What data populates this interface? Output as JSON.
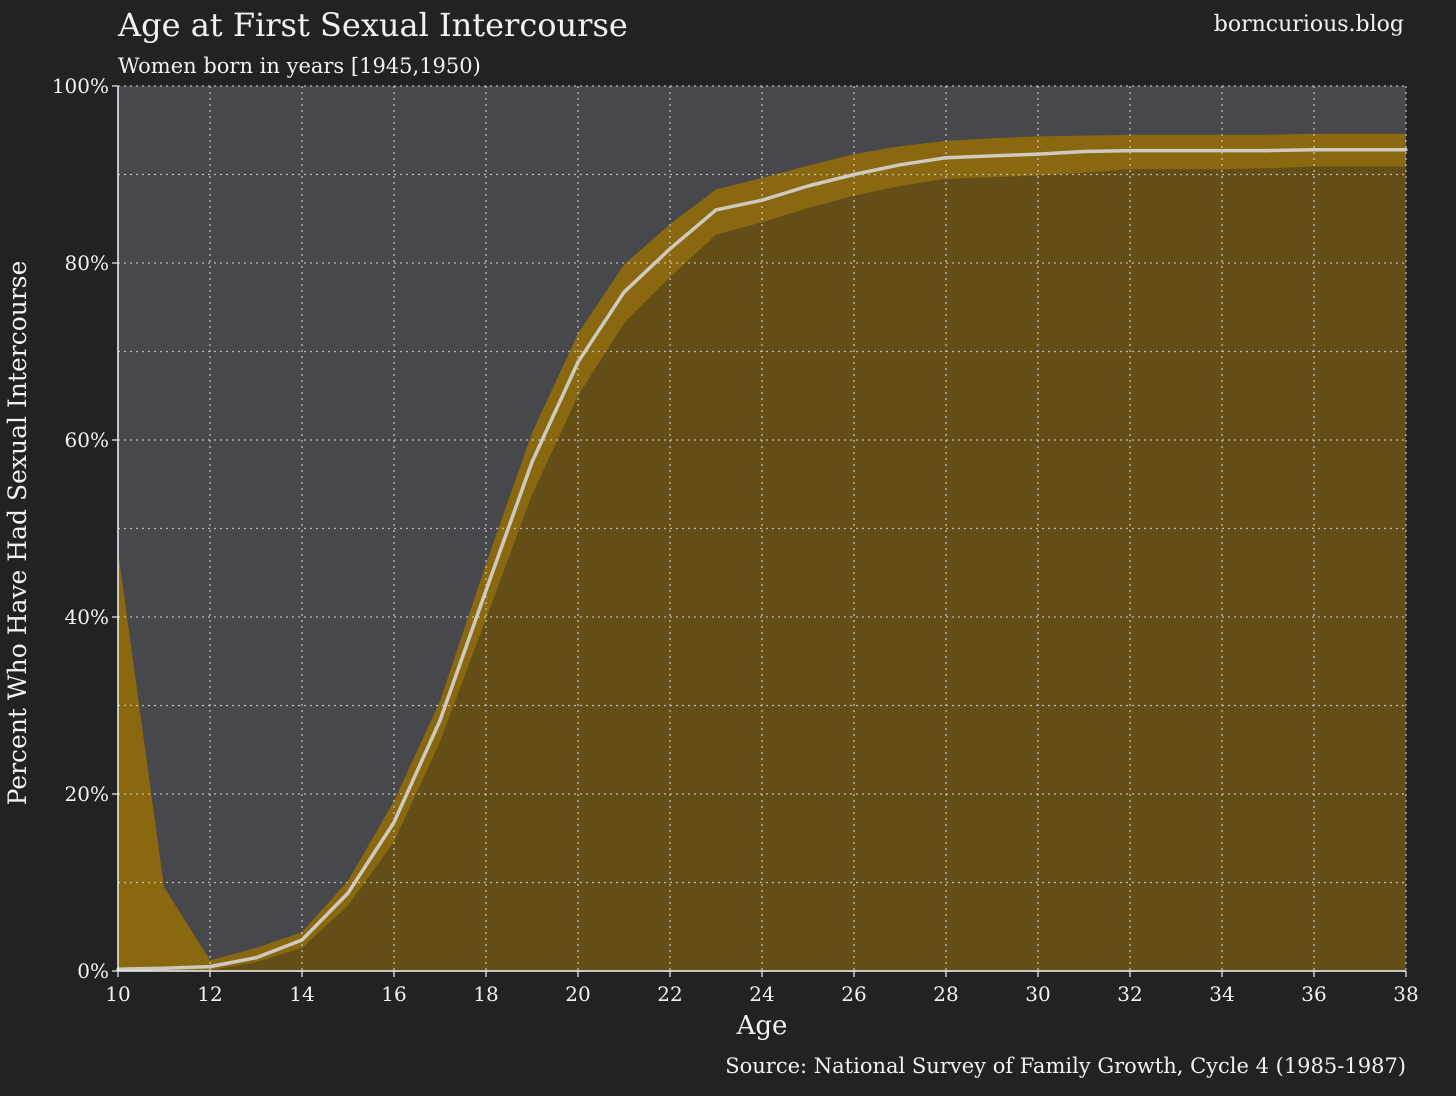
{
  "chart_data": {
    "type": "area",
    "title": "Age at First Sexual Intercourse",
    "subtitle": "Women born in years [1945,1950)",
    "watermark": "borncurious.blog",
    "source": "Source: National Survey of Family Growth, Cycle 4 (1985-1987)",
    "xlabel": "Age",
    "ylabel": "Percent Who Have Had Sexual Intercourse",
    "xlim": [
      10,
      38
    ],
    "ylim": [
      0,
      100
    ],
    "x_ticks": [
      10,
      12,
      14,
      16,
      18,
      20,
      22,
      24,
      26,
      28,
      30,
      32,
      34,
      36,
      38
    ],
    "y_ticks": [
      0,
      20,
      40,
      60,
      80,
      100
    ],
    "y_tick_labels": [
      "0%",
      "20%",
      "40%",
      "60%",
      "80%",
      "100%"
    ],
    "y_minor_grid": [
      10,
      30,
      50,
      70,
      90
    ],
    "grid": true,
    "legend": "none",
    "colors": {
      "background": "#212224",
      "plot_background": "#47484b",
      "fill": "#644e17",
      "band": "#8a6810",
      "line": "#cfcac0",
      "grid": "#d0d0d0"
    },
    "series": [
      {
        "x": [
          10,
          11,
          12,
          13,
          14,
          15,
          16,
          17,
          18,
          19,
          20,
          21,
          22,
          23,
          24,
          25,
          26,
          27,
          28,
          29,
          30,
          31,
          32,
          33,
          34,
          35,
          36,
          37,
          38
        ],
        "values": [
          0.2,
          0.3,
          0.5,
          1.5,
          3.5,
          8.8,
          16.8,
          28.3,
          43.0,
          57.5,
          68.8,
          76.7,
          81.6,
          86.0,
          87.1,
          88.7,
          90.0,
          91.1,
          91.9,
          92.1,
          92.3,
          92.6,
          92.7,
          92.7,
          92.7,
          92.7,
          92.8,
          92.8,
          92.8
        ],
        "lower": [
          0.0,
          0.0,
          0.1,
          1.0,
          2.6,
          7.4,
          14.6,
          25.9,
          39.8,
          53.8,
          65.0,
          73.2,
          78.4,
          83.2,
          84.6,
          86.2,
          87.6,
          88.7,
          89.5,
          89.7,
          89.9,
          90.2,
          90.6,
          90.6,
          90.6,
          90.7,
          90.9,
          90.9,
          90.9
        ],
        "upper": [
          47.5,
          9.5,
          1.2,
          2.6,
          4.4,
          10.2,
          19.2,
          30.5,
          46.0,
          60.8,
          72.0,
          79.8,
          84.4,
          88.3,
          89.6,
          91.0,
          92.3,
          93.2,
          93.8,
          94.1,
          94.3,
          94.4,
          94.5,
          94.5,
          94.5,
          94.5,
          94.6,
          94.6,
          94.6
        ]
      }
    ]
  }
}
